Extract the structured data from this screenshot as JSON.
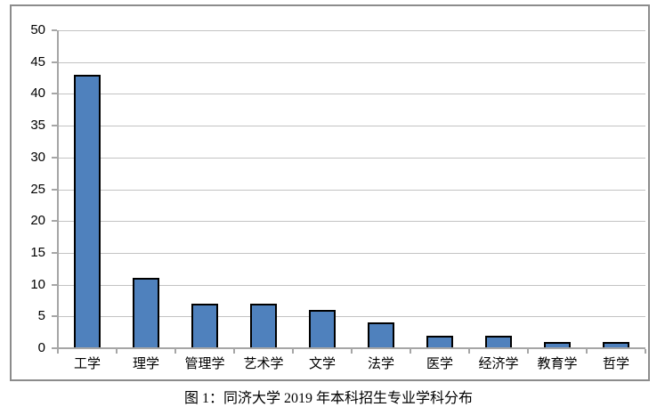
{
  "caption": "图 1：同济大学 2019 年本科招生专业学科分布",
  "chart_data": {
    "type": "bar",
    "title": "",
    "xlabel": "",
    "ylabel": "",
    "categories": [
      "工学",
      "理学",
      "管理学",
      "艺术学",
      "文学",
      "法学",
      "医学",
      "经济学",
      "教育学",
      "哲学"
    ],
    "values": [
      43,
      11,
      7,
      7,
      6,
      4,
      2,
      2,
      1,
      1
    ],
    "ylim": [
      0,
      50
    ],
    "yticks": [
      0,
      5,
      10,
      15,
      20,
      25,
      30,
      35,
      40,
      45,
      50
    ],
    "grid": true,
    "legend": false,
    "colors": {
      "bar_fill": "#4F81BD",
      "bar_border": "#000000",
      "gridline": "#C3C3C3",
      "axis": "#A6A6A6",
      "frame_border": "#8C8C8C",
      "text": "#000000"
    }
  }
}
